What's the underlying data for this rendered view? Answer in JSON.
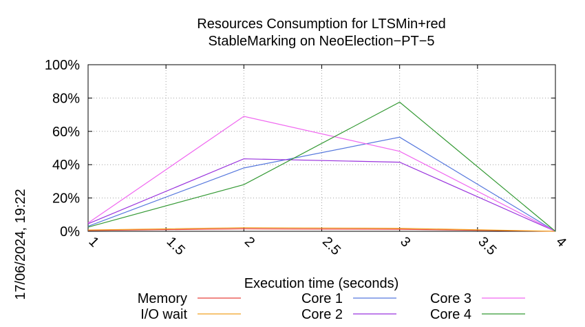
{
  "timestamp": "17/06/2024, 19:22",
  "chart_data": {
    "type": "line",
    "title_lines": [
      "Resources Consumption for LTSMin+red",
      "StableMarking on NeoElection−PT−5"
    ],
    "xlabel": "Execution time (seconds)",
    "ylabel": "",
    "xlim": [
      1,
      4
    ],
    "ylim": [
      0,
      100
    ],
    "x_ticks": [
      1,
      1.5,
      2,
      2.5,
      3,
      3.5,
      4
    ],
    "x_tick_labels": [
      "1",
      "1.5",
      "2",
      "2.5",
      "3",
      "3.5",
      "4"
    ],
    "y_ticks": [
      0,
      20,
      40,
      60,
      80,
      100
    ],
    "y_tick_labels": [
      "0%",
      "20%",
      "40%",
      "60%",
      "80%",
      "100%"
    ],
    "grid": true,
    "legend_position": "bottom",
    "x": [
      1,
      2,
      3,
      4
    ],
    "series": [
      {
        "name": "Memory",
        "color": "#e8413b",
        "values": [
          0.5,
          1.5,
          1.2,
          0
        ]
      },
      {
        "name": "I/O wait",
        "color": "#f0a020",
        "values": [
          0.8,
          2.2,
          1.8,
          0
        ]
      },
      {
        "name": "Core 1",
        "color": "#5577dd",
        "values": [
          3,
          38,
          56.5,
          0
        ]
      },
      {
        "name": "Core 2",
        "color": "#9933dd",
        "values": [
          4.5,
          43.5,
          41.5,
          0
        ]
      },
      {
        "name": "Core 3",
        "color": "#f066f0",
        "values": [
          5,
          69,
          48,
          0
        ]
      },
      {
        "name": "Core 4",
        "color": "#339933",
        "values": [
          2.5,
          28,
          77.5,
          0
        ]
      }
    ]
  }
}
